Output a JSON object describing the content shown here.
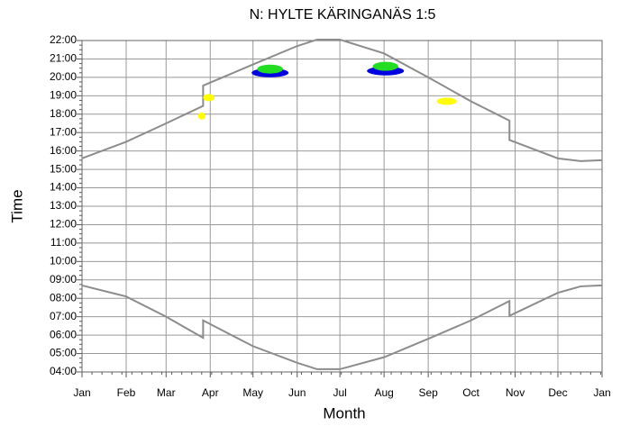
{
  "chart_data": {
    "type": "line",
    "title": "N: HYLTE KÄRINGANÄS 1:5",
    "xlabel": "Month",
    "ylabel": "Time",
    "xlim": [
      0,
      365
    ],
    "ylim": [
      4,
      22
    ],
    "xticks": [
      {
        "value": 0,
        "label": "Jan"
      },
      {
        "value": 31,
        "label": "Feb"
      },
      {
        "value": 59,
        "label": "Mar"
      },
      {
        "value": 90,
        "label": "Apr"
      },
      {
        "value": 120,
        "label": "May"
      },
      {
        "value": 151,
        "label": "Jun"
      },
      {
        "value": 181,
        "label": "Jul"
      },
      {
        "value": 212,
        "label": "Aug"
      },
      {
        "value": 243,
        "label": "Sep"
      },
      {
        "value": 273,
        "label": "Oct"
      },
      {
        "value": 304,
        "label": "Nov"
      },
      {
        "value": 334,
        "label": "Dec"
      },
      {
        "value": 365,
        "label": "Jan"
      }
    ],
    "yticks": [
      {
        "value": 4,
        "label": "04:00"
      },
      {
        "value": 5,
        "label": "05:00"
      },
      {
        "value": 6,
        "label": "06:00"
      },
      {
        "value": 7,
        "label": "07:00"
      },
      {
        "value": 8,
        "label": "08:00"
      },
      {
        "value": 9,
        "label": "09:00"
      },
      {
        "value": 10,
        "label": "10:00"
      },
      {
        "value": 11,
        "label": "11:00"
      },
      {
        "value": 12,
        "label": "12:00"
      },
      {
        "value": 13,
        "label": "13:00"
      },
      {
        "value": 14,
        "label": "14:00"
      },
      {
        "value": 15,
        "label": "15:00"
      },
      {
        "value": 16,
        "label": "16:00"
      },
      {
        "value": 17,
        "label": "17:00"
      },
      {
        "value": 18,
        "label": "18:00"
      },
      {
        "value": 19,
        "label": "19:00"
      },
      {
        "value": 20,
        "label": "20:00"
      },
      {
        "value": 21,
        "label": "21:00"
      },
      {
        "value": 22,
        "label": "22:00"
      }
    ],
    "grid": true,
    "line_color": "#8c8c8c",
    "lines": [
      {
        "x": [
          0,
          31,
          59,
          85,
          85,
          120,
          151,
          165,
          181,
          212,
          243,
          273,
          300,
          300,
          334,
          350,
          365
        ],
        "y": [
          15.6,
          16.5,
          17.5,
          18.45,
          19.55,
          20.7,
          21.7,
          22.05,
          22.05,
          21.3,
          20.0,
          18.7,
          17.65,
          16.6,
          15.6,
          15.45,
          15.5
        ]
      },
      {
        "x": [
          0,
          31,
          59,
          85,
          85,
          120,
          151,
          165,
          181,
          212,
          243,
          273,
          300,
          300,
          334,
          350,
          365
        ],
        "y": [
          8.7,
          8.1,
          7.0,
          5.85,
          6.8,
          5.4,
          4.5,
          4.15,
          4.15,
          4.8,
          5.8,
          6.8,
          7.85,
          7.05,
          8.3,
          8.65,
          8.7
        ]
      }
    ],
    "spots": {
      "x": [
        132,
        132,
        213,
        213,
        84,
        89,
        256
      ],
      "y": [
        20.25,
        20.45,
        20.35,
        20.6,
        17.9,
        18.9,
        18.7
      ],
      "widths": [
        26,
        18,
        26,
        18,
        5,
        8,
        14
      ],
      "colors": [
        "#0000e0",
        "#22dd22",
        "#0000e0",
        "#22dd22",
        "#ffff00",
        "#ffff00",
        "#ffff00"
      ]
    }
  }
}
